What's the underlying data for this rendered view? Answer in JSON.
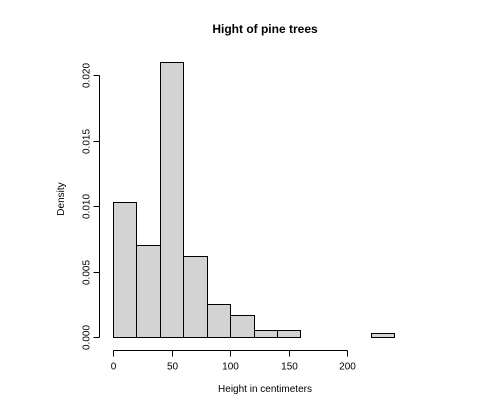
{
  "chart_data": {
    "type": "bar",
    "subtype": "histogram",
    "title": "Hight of pine trees",
    "xlabel": "Height in centimeters",
    "ylabel": "Density",
    "bins": [
      {
        "from": 0,
        "to": 20,
        "density": 0.0103
      },
      {
        "from": 20,
        "to": 40,
        "density": 0.007
      },
      {
        "from": 40,
        "to": 60,
        "density": 0.021
      },
      {
        "from": 60,
        "to": 80,
        "density": 0.0062
      },
      {
        "from": 80,
        "to": 100,
        "density": 0.0025
      },
      {
        "from": 100,
        "to": 120,
        "density": 0.0017
      },
      {
        "from": 120,
        "to": 140,
        "density": 0.0005
      },
      {
        "from": 140,
        "to": 160,
        "density": 0.0005
      },
      {
        "from": 160,
        "to": 180,
        "density": 0.0
      },
      {
        "from": 180,
        "to": 200,
        "density": 0.0
      },
      {
        "from": 200,
        "to": 220,
        "density": 0.0
      },
      {
        "from": 220,
        "to": 240,
        "density": 0.0003
      }
    ],
    "xlim": [
      0,
      240
    ],
    "ylim": [
      0,
      0.021
    ],
    "xticks": [
      0,
      50,
      100,
      150,
      200
    ],
    "xtick_labels": [
      "0",
      "50",
      "100",
      "150",
      "200"
    ],
    "yticks": [
      0,
      0.005,
      0.01,
      0.015,
      0.02
    ],
    "ytick_labels": [
      "0.000",
      "0.005",
      "0.010",
      "0.015",
      "0.020"
    ],
    "bar_fill": "#d3d3d3",
    "bar_stroke": "#000000",
    "grid": false,
    "legend": "none"
  }
}
